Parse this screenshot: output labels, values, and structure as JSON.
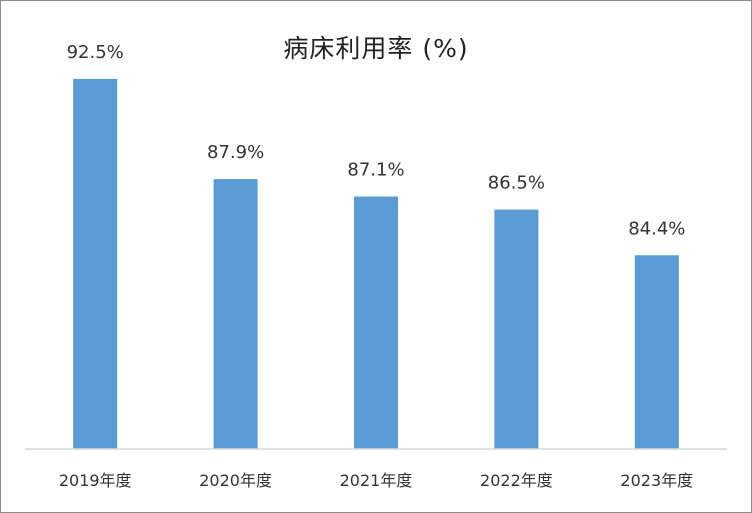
{
  "chart_data": {
    "type": "bar",
    "title": "病床利用率 (%)",
    "categories": [
      "2019年度",
      "2020年度",
      "2021年度",
      "2022年度",
      "2023年度"
    ],
    "values": [
      92.5,
      87.9,
      87.1,
      86.5,
      84.4
    ],
    "data_labels": [
      "92.5%",
      "87.9%",
      "87.1%",
      "86.5%",
      "84.4%"
    ],
    "xlabel": "",
    "ylabel": "",
    "ylim": [
      75.5,
      95
    ],
    "grid": false,
    "legend": "none",
    "bar_color": "#5b9bd5",
    "axis_color": "#d9d9d9"
  }
}
